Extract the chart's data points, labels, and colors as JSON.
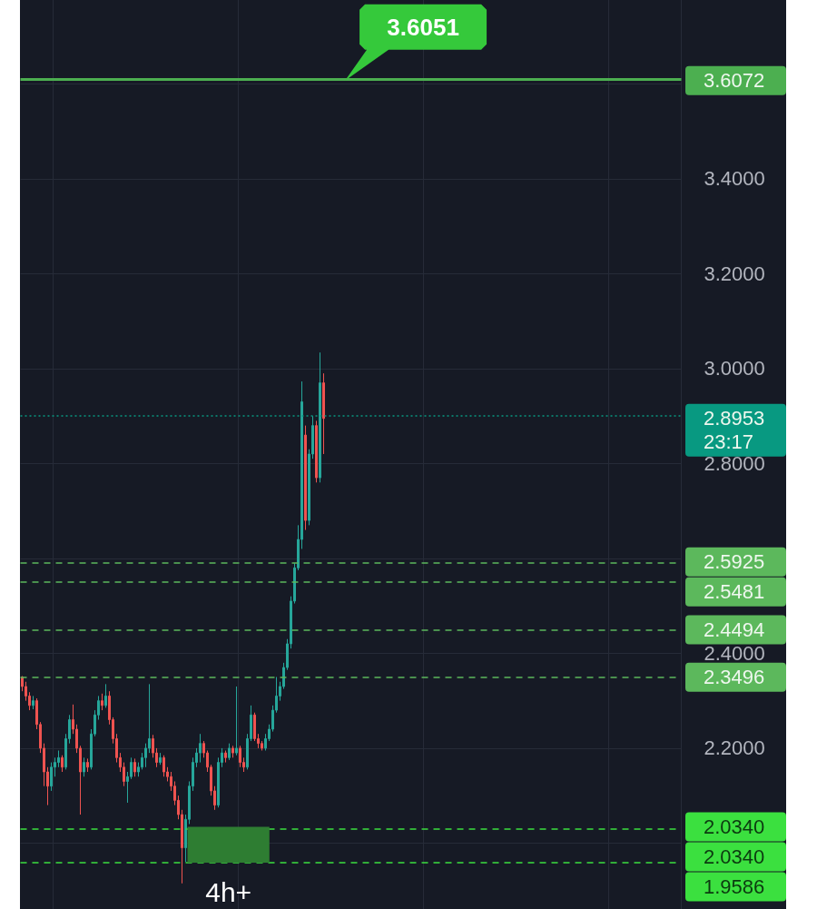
{
  "chart_data": {
    "type": "candlestick",
    "categories": [
      null,
      null,
      null,
      null,
      null,
      null,
      null,
      null,
      null,
      null,
      null,
      null,
      null,
      null,
      null,
      null,
      null,
      null,
      null,
      null,
      null,
      null,
      null,
      null,
      null,
      null,
      null,
      null,
      null,
      null,
      null,
      null,
      null,
      null,
      null,
      null,
      null,
      null,
      null,
      null,
      null,
      null,
      null,
      null,
      null,
      null,
      null,
      null,
      null,
      null,
      null,
      null,
      null,
      null,
      null,
      null,
      null,
      null,
      null,
      null,
      null,
      null,
      null,
      null,
      null,
      null,
      null,
      null,
      null,
      null,
      null,
      null,
      null,
      null,
      null,
      null,
      null,
      null,
      null,
      null,
      null,
      null,
      null,
      null,
      null,
      null,
      null,
      null,
      null,
      null,
      null,
      null,
      null,
      null,
      null,
      null,
      null,
      null,
      null,
      null,
      null,
      null,
      null,
      null,
      null,
      null,
      null,
      null,
      null,
      null,
      null,
      null,
      null,
      null,
      null,
      null,
      null,
      null,
      null,
      null,
      null,
      null,
      null,
      null,
      null,
      null,
      null,
      null,
      null,
      null,
      null,
      null,
      null,
      null,
      null,
      null,
      null,
      null,
      null,
      null,
      null,
      null,
      null,
      null,
      null,
      null,
      null,
      null,
      null,
      null,
      null,
      null,
      null,
      null,
      null,
      null,
      null,
      null,
      null,
      null,
      null,
      null,
      null,
      null,
      null,
      null,
      null,
      null,
      null,
      null,
      null,
      null,
      null,
      null,
      null,
      null,
      null,
      null,
      null,
      null,
      null,
      null
    ],
    "ohlc": [
      [
        2.35,
        2.352,
        2.32,
        2.33
      ],
      [
        2.33,
        2.34,
        2.3,
        2.31
      ],
      [
        2.31,
        2.318,
        2.28,
        2.29
      ],
      [
        2.29,
        2.31,
        2.282,
        2.3
      ],
      [
        2.3,
        2.305,
        2.24,
        2.25
      ],
      [
        2.25,
        2.255,
        2.19,
        2.2
      ],
      [
        2.2,
        2.21,
        2.12,
        2.15
      ],
      [
        2.15,
        2.16,
        2.08,
        2.12
      ],
      [
        2.12,
        2.17,
        2.11,
        2.16
      ],
      [
        2.16,
        2.18,
        2.14,
        2.17
      ],
      [
        2.17,
        2.195,
        2.16,
        2.18
      ],
      [
        2.18,
        2.185,
        2.15,
        2.16
      ],
      [
        2.16,
        2.23,
        2.155,
        2.22
      ],
      [
        2.22,
        2.27,
        2.21,
        2.26
      ],
      [
        2.26,
        2.292,
        2.23,
        2.24
      ],
      [
        2.24,
        2.25,
        2.19,
        2.2
      ],
      [
        2.2,
        2.205,
        2.06,
        2.15
      ],
      [
        2.15,
        2.18,
        2.14,
        2.17
      ],
      [
        2.17,
        2.178,
        2.15,
        2.16
      ],
      [
        2.16,
        2.24,
        2.155,
        2.23
      ],
      [
        2.23,
        2.28,
        2.225,
        2.27
      ],
      [
        2.27,
        2.31,
        2.26,
        2.3
      ],
      [
        2.3,
        2.315,
        2.28,
        2.29
      ],
      [
        2.29,
        2.335,
        2.285,
        2.31
      ],
      [
        2.31,
        2.32,
        2.25,
        2.26
      ],
      [
        2.26,
        2.265,
        2.21,
        2.22
      ],
      [
        2.22,
        2.23,
        2.17,
        2.18
      ],
      [
        2.18,
        2.19,
        2.15,
        2.16
      ],
      [
        2.16,
        2.17,
        2.12,
        2.13
      ],
      [
        2.13,
        2.15,
        2.085,
        2.14
      ],
      [
        2.14,
        2.18,
        2.135,
        2.17
      ],
      [
        2.17,
        2.178,
        2.14,
        2.15
      ],
      [
        2.15,
        2.17,
        2.14,
        2.16
      ],
      [
        2.16,
        2.19,
        2.155,
        2.18
      ],
      [
        2.18,
        2.21,
        2.16,
        2.2
      ],
      [
        2.2,
        2.335,
        2.19,
        2.22
      ],
      [
        2.22,
        2.228,
        2.18,
        2.19
      ],
      [
        2.19,
        2.2,
        2.16,
        2.17
      ],
      [
        2.17,
        2.19,
        2.165,
        2.18
      ],
      [
        2.18,
        2.185,
        2.14,
        2.15
      ],
      [
        2.15,
        2.16,
        2.13,
        2.14
      ],
      [
        2.14,
        2.15,
        2.11,
        2.12
      ],
      [
        2.12,
        2.13,
        2.08,
        2.09
      ],
      [
        2.09,
        2.1,
        2.05,
        2.06
      ],
      [
        2.06,
        2.07,
        1.915,
        1.99
      ],
      [
        1.99,
        2.06,
        1.96,
        2.05
      ],
      [
        2.05,
        2.13,
        2.04,
        2.12
      ],
      [
        2.12,
        2.18,
        2.11,
        2.17
      ],
      [
        2.17,
        2.2,
        2.16,
        2.19
      ],
      [
        2.19,
        2.23,
        2.17,
        2.21
      ],
      [
        2.21,
        2.215,
        2.18,
        2.19
      ],
      [
        2.19,
        2.195,
        2.15,
        2.16
      ],
      [
        2.16,
        2.165,
        2.1,
        2.11
      ],
      [
        2.11,
        2.12,
        2.07,
        2.08
      ],
      [
        2.08,
        2.18,
        2.075,
        2.17
      ],
      [
        2.17,
        2.2,
        2.16,
        2.19
      ],
      [
        2.19,
        2.195,
        2.17,
        2.18
      ],
      [
        2.18,
        2.21,
        2.175,
        2.2
      ],
      [
        2.2,
        2.205,
        2.18,
        2.19
      ],
      [
        2.19,
        2.33,
        2.185,
        2.2
      ],
      [
        2.2,
        2.205,
        2.16,
        2.17
      ],
      [
        2.17,
        2.18,
        2.15,
        2.16
      ],
      [
        2.16,
        2.23,
        2.155,
        2.22
      ],
      [
        2.22,
        2.29,
        2.215,
        2.27
      ],
      [
        2.27,
        2.275,
        2.215,
        2.22
      ],
      [
        2.22,
        2.23,
        2.2,
        2.21
      ],
      [
        2.21,
        2.215,
        2.195,
        2.2
      ],
      [
        2.2,
        2.23,
        2.195,
        2.22
      ],
      [
        2.22,
        2.25,
        2.215,
        2.24
      ],
      [
        2.24,
        2.29,
        2.235,
        2.28
      ],
      [
        2.28,
        2.35,
        2.275,
        2.31
      ],
      [
        2.31,
        2.34,
        2.3,
        2.33
      ],
      [
        2.33,
        2.38,
        2.325,
        2.37
      ],
      [
        2.37,
        2.43,
        2.365,
        2.42
      ],
      [
        2.42,
        2.52,
        2.41,
        2.51
      ],
      [
        2.51,
        2.59,
        2.505,
        2.58
      ],
      [
        2.58,
        2.67,
        2.575,
        2.64
      ],
      [
        2.64,
        2.973,
        2.62,
        2.93
      ],
      [
        2.86,
        2.88,
        2.66,
        2.68
      ],
      [
        2.68,
        2.83,
        2.67,
        2.82
      ],
      [
        2.82,
        2.9,
        2.81,
        2.88
      ],
      [
        2.88,
        2.89,
        2.76,
        2.77
      ],
      [
        2.77,
        3.034,
        2.76,
        2.97
      ],
      [
        2.97,
        2.99,
        2.82,
        2.895
      ],
      null,
      null,
      null,
      null,
      null,
      null,
      null,
      null,
      null,
      null,
      null,
      null,
      null,
      null,
      null,
      null,
      null,
      null,
      null,
      null,
      null,
      null,
      null,
      null,
      null,
      null,
      null,
      null,
      null,
      null,
      null,
      null,
      null,
      null,
      null,
      null,
      null,
      null,
      null,
      null,
      null,
      null,
      null,
      null,
      null,
      null,
      null,
      null,
      null,
      null,
      null,
      null,
      null,
      null,
      null,
      null,
      null,
      null,
      null,
      null,
      null,
      null,
      null,
      null,
      null,
      null,
      null,
      null,
      null,
      null,
      null,
      null,
      null,
      null,
      null,
      null,
      null,
      null,
      null,
      null,
      null,
      null,
      null,
      null,
      null,
      null,
      null,
      null,
      null,
      null,
      null,
      null,
      null,
      null,
      null,
      null,
      null,
      null
    ],
    "colors": [
      "#ef5350",
      "#ef5350",
      "#ef5350",
      "#26a69a",
      "#ef5350",
      "#ef5350",
      "#ef5350",
      "#ef5350",
      "#26a69a",
      "#26a69a",
      "#26a69a",
      "#ef5350",
      "#26a69a",
      "#26a69a",
      "#ef5350",
      "#ef5350",
      "#ef5350",
      "#26a69a",
      "#ef5350",
      "#26a69a",
      "#26a69a",
      "#26a69a",
      "#ef5350",
      "#26a69a",
      "#ef5350",
      "#ef5350",
      "#ef5350",
      "#ef5350",
      "#ef5350",
      "#26a69a",
      "#26a69a",
      "#ef5350",
      "#26a69a",
      "#26a69a",
      "#26a69a",
      "#26a69a",
      "#ef5350",
      "#ef5350",
      "#26a69a",
      "#ef5350",
      "#ef5350",
      "#ef5350",
      "#ef5350",
      "#ef5350",
      "#ef5350",
      "#26a69a",
      "#26a69a",
      "#26a69a",
      "#26a69a",
      "#26a69a",
      "#ef5350",
      "#ef5350",
      "#ef5350",
      "#ef5350",
      "#26a69a",
      "#26a69a",
      "#ef5350",
      "#26a69a",
      "#ef5350",
      "#26a69a",
      "#ef5350",
      "#ef5350",
      "#26a69a",
      "#26a69a",
      "#ef5350",
      "#ef5350",
      "#ef5350",
      "#26a69a",
      "#26a69a",
      "#26a69a",
      "#26a69a",
      "#26a69a",
      "#26a69a",
      "#26a69a",
      "#26a69a",
      "#26a69a",
      "#26a69a",
      "#26a69a",
      "#ef5350",
      "#26a69a",
      "#26a69a",
      "#ef5350",
      "#26a69a",
      "#ef5350",
      null,
      null,
      null,
      null,
      null,
      null,
      null,
      null,
      null,
      null,
      null,
      null,
      null,
      null,
      null,
      null,
      null,
      null,
      null,
      null,
      null,
      null,
      null,
      null,
      null,
      null,
      null,
      null,
      null,
      null,
      null,
      null,
      null,
      null,
      null,
      null,
      null,
      null,
      null,
      null,
      null,
      null,
      null,
      null,
      null,
      null,
      null,
      null,
      null,
      null,
      null,
      null,
      null,
      null,
      null,
      null,
      null,
      null,
      null,
      null,
      null,
      null,
      null,
      null,
      null,
      null,
      null,
      null,
      null,
      null,
      null,
      null,
      null,
      null,
      null,
      null,
      null,
      null,
      null,
      null,
      null,
      null,
      null,
      null,
      null,
      null,
      null,
      null,
      null,
      null,
      null,
      null,
      null,
      null,
      null,
      null,
      null,
      null
    ],
    "ylim": [
      1.861,
      3.777
    ],
    "yticks": [
      {
        "value": 2.0,
        "label": null
      },
      {
        "value": 2.2,
        "label": "2.2000"
      },
      {
        "value": 2.4,
        "label": "2.4000"
      },
      {
        "value": 2.6,
        "label": null
      },
      {
        "value": 2.8,
        "label": "2.8000"
      },
      {
        "value": 3.0,
        "label": "3.0000"
      },
      {
        "value": 3.2,
        "label": "3.2000"
      },
      {
        "value": 3.4,
        "label": "3.4000"
      },
      {
        "value": 3.6,
        "label": null
      }
    ],
    "grid": true,
    "tick_labels": "y",
    "ref_lines": [
      {
        "axis": "y",
        "value": 3.6072,
        "label": "3.6072",
        "color": "#4caf50",
        "line_style": "solid"
      },
      {
        "axis": "y",
        "value": 2.8953,
        "label": "2.8953\n23:17",
        "color": "#089981",
        "line_style": "dotted"
      },
      {
        "axis": "y",
        "value": 2.5925,
        "label": "2.5925",
        "color": "#5cb85c",
        "line_style": "dashed"
      },
      {
        "axis": "y",
        "value": 2.5481,
        "label": "2.5481",
        "color": "#5cb85c",
        "line_style": "dashed"
      },
      {
        "axis": "y",
        "value": 2.4494,
        "label": "2.4494",
        "color": "#5cb85c",
        "line_style": "dashed"
      },
      {
        "axis": "y",
        "value": 2.3496,
        "label": "2.3496",
        "color": "#5cb85c",
        "line_style": "dashed"
      },
      {
        "axis": "y",
        "value": 2.034,
        "label": "2.0340",
        "color": "#3be03f",
        "line_style": "dashed"
      },
      {
        "axis": "y",
        "value": 1.9586,
        "label": "1.9586",
        "color": "#3be03f",
        "line_style": "dashed"
      }
    ],
    "bands": [
      {
        "axis": "y",
        "from": 1.9586,
        "to": 2.034,
        "label": "4h+",
        "color": "#2e7d32"
      }
    ],
    "annotations": [
      {
        "text": "3.6051",
        "y": 3.6072
      },
      "2.0340"
    ]
  }
}
